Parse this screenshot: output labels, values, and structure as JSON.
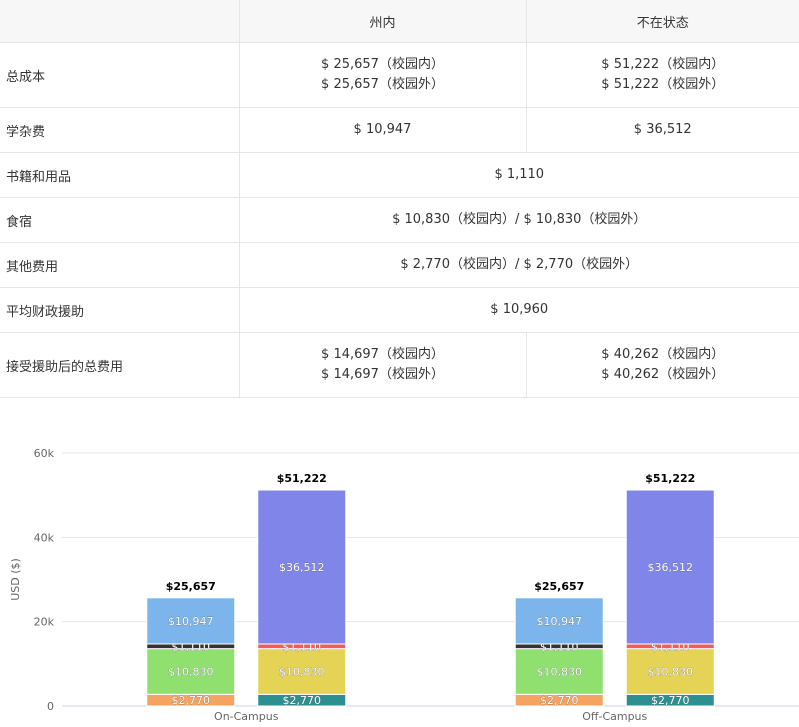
{
  "table": {
    "headers": [
      "",
      "州内",
      "不在状态"
    ],
    "rows": [
      {
        "label": "总成本",
        "in_state": [
          "$ 25,657（校园内）",
          "$ 25,657（校园外）"
        ],
        "out_state": [
          "$ 51,222（校园内）",
          "$ 51,222（校园外）"
        ]
      },
      {
        "label": "学杂费",
        "in_state": [
          "$ 10,947"
        ],
        "out_state": [
          "$ 36,512"
        ]
      },
      {
        "label": "书籍和用品",
        "merged": "$ 1,110"
      },
      {
        "label": "食宿",
        "merged": "$ 10,830（校园内）/ $ 10,830（校园外）"
      },
      {
        "label": "其他费用",
        "merged": "$ 2,770（校园内）/ $ 2,770（校园外）"
      },
      {
        "label": "平均财政援助",
        "merged": "$ 10,960"
      },
      {
        "label": "接受援助后的总费用",
        "in_state": [
          "$ 14,697（校园内）",
          "$ 14,697（校园外）"
        ],
        "out_state": [
          "$ 40,262（校园内）",
          "$ 40,262（校园外）"
        ]
      }
    ]
  },
  "chart_data": {
    "type": "bar",
    "stacked": true,
    "ylabel": "USD ($)",
    "ylim": [
      0,
      60000
    ],
    "y_ticks": [
      0,
      20000,
      40000,
      60000
    ],
    "y_tick_labels": [
      "0",
      "20k",
      "40k",
      "60k"
    ],
    "categories": [
      "On-Campus",
      "Off-Campus"
    ],
    "grid": true,
    "bars": [
      {
        "category": "On-Campus",
        "group_index": 0,
        "total_label": "$25,657",
        "segments": [
          {
            "value": 2770,
            "label": "$2,770",
            "color": "#f4a460"
          },
          {
            "value": 10830,
            "label": "$10,830",
            "color": "#90e070"
          },
          {
            "value": 1110,
            "label": "$1,110",
            "color": "#333333"
          },
          {
            "value": 10947,
            "label": "$10,947",
            "color": "#7cb5ec"
          }
        ]
      },
      {
        "category": "On-Campus",
        "group_index": 1,
        "total_label": "$51,222",
        "segments": [
          {
            "value": 2770,
            "label": "$2,770",
            "color": "#2b908f"
          },
          {
            "value": 10830,
            "label": "$10,830",
            "color": "#e4d354"
          },
          {
            "value": 1110,
            "label": "$1,110",
            "color": "#f45b5b"
          },
          {
            "value": 36512,
            "label": "$36,512",
            "color": "#8085e9"
          }
        ]
      },
      {
        "category": "Off-Campus",
        "group_index": 0,
        "total_label": "$25,657",
        "segments": [
          {
            "value": 2770,
            "label": "$2,770",
            "color": "#f4a460"
          },
          {
            "value": 10830,
            "label": "$10,830",
            "color": "#90e070"
          },
          {
            "value": 1110,
            "label": "$1,110",
            "color": "#333333"
          },
          {
            "value": 10947,
            "label": "$10,947",
            "color": "#7cb5ec"
          }
        ]
      },
      {
        "category": "Off-Campus",
        "group_index": 1,
        "total_label": "$51,222",
        "segments": [
          {
            "value": 2770,
            "label": "$2,770",
            "color": "#2b908f"
          },
          {
            "value": 10830,
            "label": "$10,830",
            "color": "#e4d354"
          },
          {
            "value": 1110,
            "label": "$1,110",
            "color": "#f45b5b"
          },
          {
            "value": 36512,
            "label": "$36,512",
            "color": "#8085e9"
          }
        ]
      }
    ]
  }
}
